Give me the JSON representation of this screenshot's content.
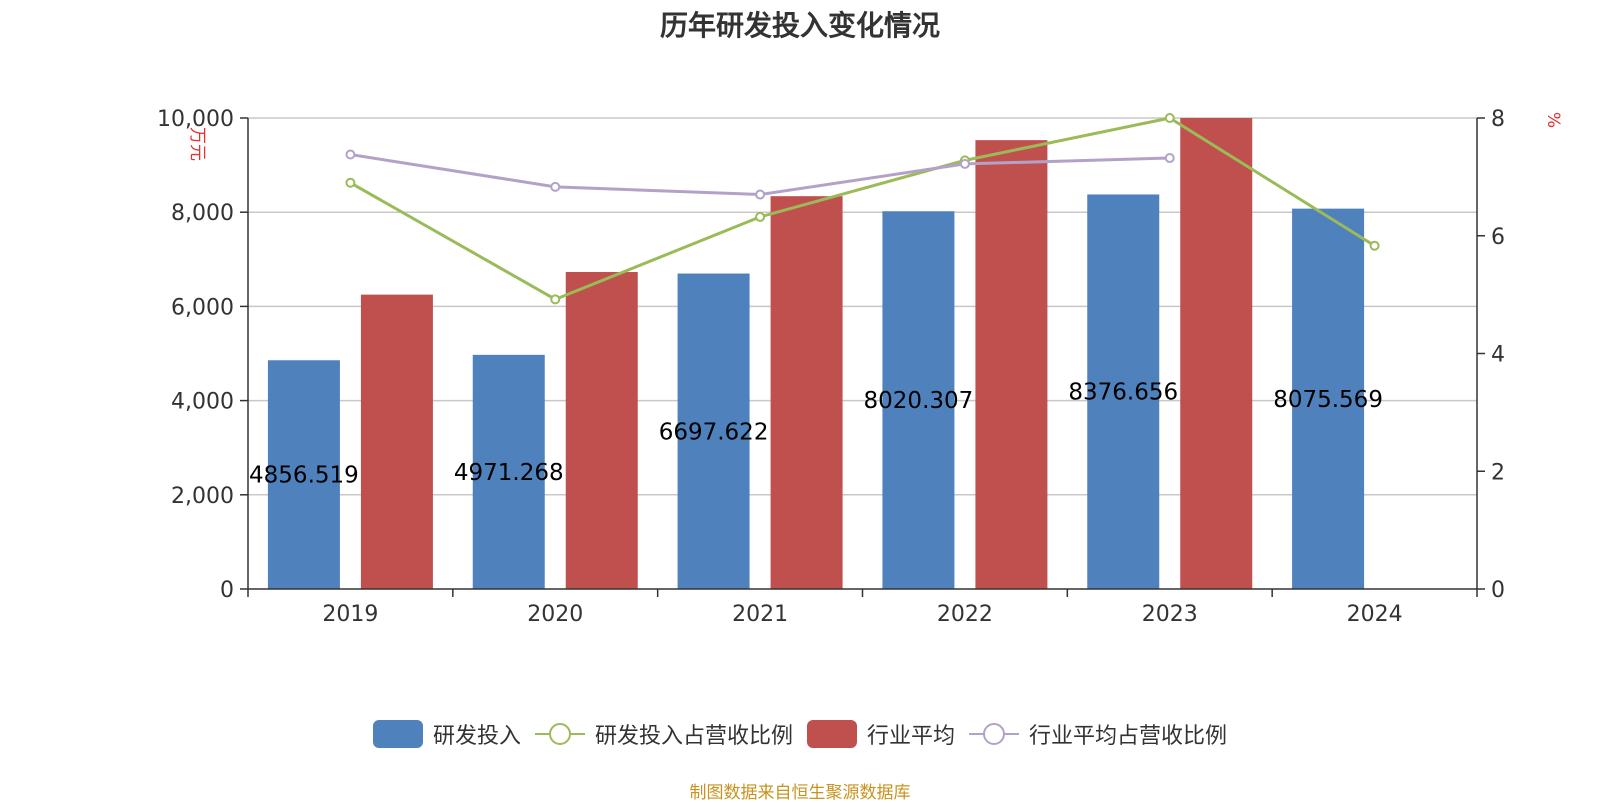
{
  "chart_data": {
    "type": "bar",
    "title": "历年研发投入变化情况",
    "categories": [
      "2019",
      "2020",
      "2021",
      "2022",
      "2023",
      "2024"
    ],
    "y_left": {
      "label": "万元",
      "min": 0,
      "max": 10000,
      "ticks": [
        "0",
        "2,000",
        "4,000",
        "6,000",
        "8,000",
        "10,000"
      ]
    },
    "y_right": {
      "label": "%",
      "min": 0,
      "max": 8,
      "ticks": [
        "0",
        "2",
        "4",
        "6",
        "8"
      ]
    },
    "series": [
      {
        "name": "研发投入",
        "kind": "bar",
        "axis": "left",
        "color": "#4f81bd",
        "values": [
          4856.519,
          4971.268,
          6697.622,
          8020.307,
          8376.656,
          8075.569
        ],
        "labels": [
          "4856.519",
          "4971.268",
          "6697.622",
          "8020.307",
          "8376.656",
          "8075.569"
        ]
      },
      {
        "name": "行业平均",
        "kind": "bar",
        "axis": "left",
        "color": "#c0504d",
        "values": [
          6250,
          6730,
          8340,
          9530,
          10000,
          null
        ]
      },
      {
        "name": "研发投入占营收比例",
        "kind": "line",
        "axis": "right",
        "color": "#9bbb59",
        "values": [
          6.9,
          4.92,
          6.32,
          7.28,
          8.0,
          5.83
        ]
      },
      {
        "name": "行业平均占营收比例",
        "kind": "line",
        "axis": "right",
        "color": "#b3a2c7",
        "values": [
          7.38,
          6.83,
          6.7,
          7.22,
          7.32,
          null
        ]
      }
    ],
    "grid": true,
    "legend_position": "bottom"
  },
  "footer": "制图数据来自恒生聚源数据库"
}
